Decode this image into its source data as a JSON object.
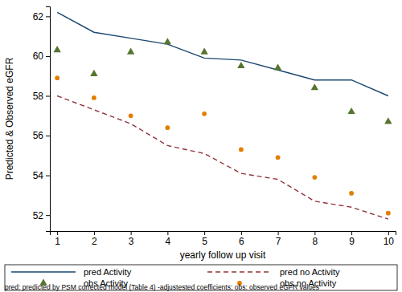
{
  "chart_data": {
    "type": "line",
    "x_label": "yearly follow up visit",
    "y_label": "Predicted & Observed eGFR",
    "annotations": [
      "pred: predicted by PSM corrected model (Table 4) -adjustested coefficients; obs: observed eGFR values"
    ],
    "x": [
      1,
      2,
      3,
      4,
      5,
      6,
      7,
      8,
      9,
      10
    ],
    "xlim": [
      0.8,
      10.2
    ],
    "xticks": [
      1,
      2,
      3,
      4,
      5,
      6,
      7,
      8,
      9,
      10
    ],
    "ylim": [
      51.2,
      62.5
    ],
    "yticks": [
      52,
      54,
      56,
      58,
      60,
      62
    ],
    "grid": false,
    "legend": "bottom",
    "series": [
      {
        "name": "pred Activity",
        "type": "line",
        "line_style": "solid",
        "color": "#1a476f",
        "values": [
          62.2,
          61.2,
          60.9,
          60.6,
          59.9,
          59.8,
          59.3,
          58.8,
          58.8,
          58.0
        ]
      },
      {
        "name": "pred no Activity",
        "type": "line",
        "line_style": "dashed",
        "color": "#90353b",
        "values": [
          58.0,
          57.3,
          56.6,
          55.5,
          55.1,
          54.1,
          53.8,
          52.7,
          52.4,
          51.8
        ]
      },
      {
        "name": "obs Activity",
        "type": "scatter",
        "marker": "triangle",
        "color": "#55752f",
        "values": [
          60.3,
          59.1,
          60.2,
          60.7,
          60.2,
          59.5,
          59.4,
          58.4,
          57.2,
          56.7
        ]
      },
      {
        "name": "obs no Activity",
        "type": "scatter",
        "marker": "circle",
        "color": "#e37e00",
        "values": [
          58.9,
          57.9,
          57.0,
          56.4,
          57.1,
          55.3,
          54.9,
          53.9,
          53.1,
          52.1
        ]
      }
    ]
  }
}
